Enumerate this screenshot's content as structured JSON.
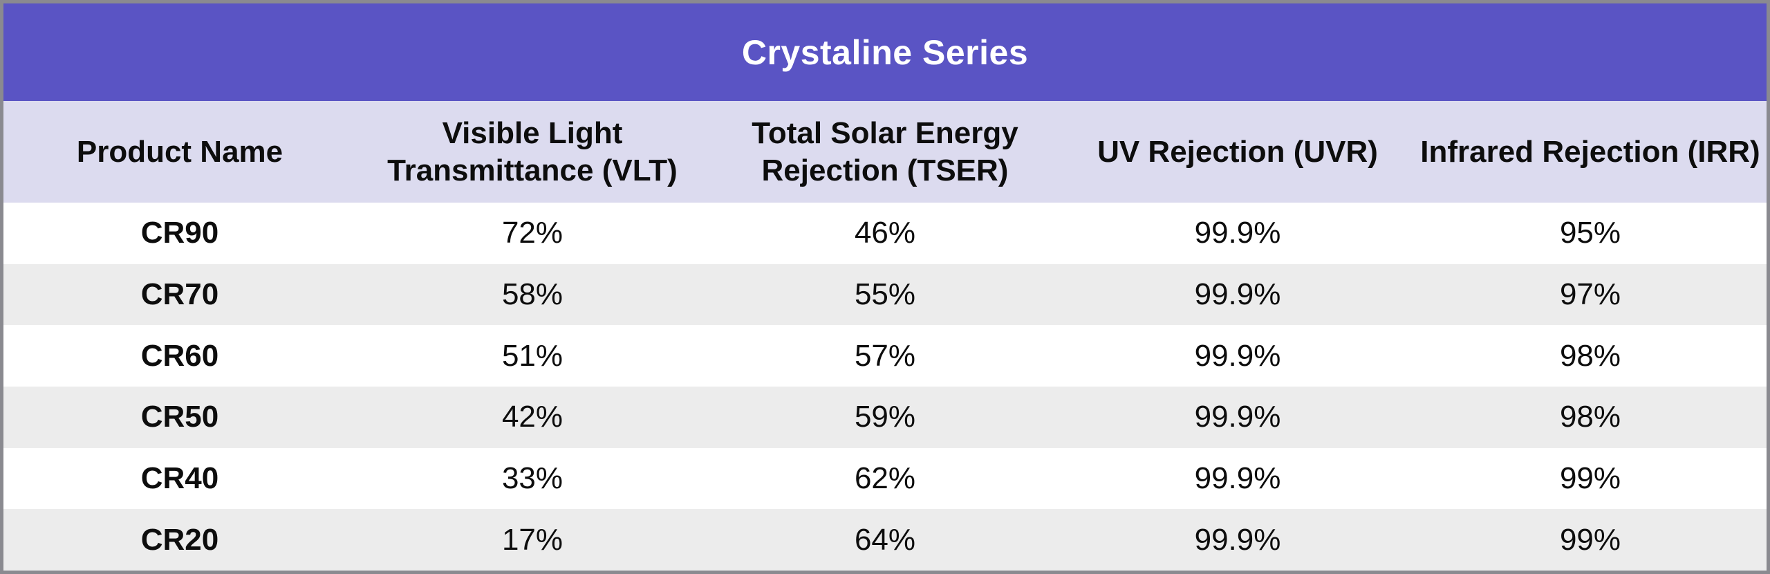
{
  "title": "Crystaline Series",
  "colors": {
    "title_band_bg": "#5A54C4",
    "title_text": "#FFFFFF",
    "header_row_bg": "#DCDBEF",
    "stripe_row_bg": "#ECECEC",
    "plain_row_bg": "#FFFFFF",
    "body_text": "#0D0D0D",
    "outer_border": "#8A8A90"
  },
  "columns": [
    {
      "label": "Product Name"
    },
    {
      "label": "Visible Light\nTransmittance (VLT)"
    },
    {
      "label": "Total Solar Energy\nRejection (TSER)"
    },
    {
      "label": "UV Rejection (UVR)"
    },
    {
      "label": "Infrared Rejection (IRR)"
    }
  ],
  "rows": [
    {
      "product": "CR90",
      "vlt": "72%",
      "tser": "46%",
      "uvr": "99.9%",
      "irr": "95%"
    },
    {
      "product": "CR70",
      "vlt": "58%",
      "tser": "55%",
      "uvr": "99.9%",
      "irr": "97%"
    },
    {
      "product": "CR60",
      "vlt": "51%",
      "tser": "57%",
      "uvr": "99.9%",
      "irr": "98%"
    },
    {
      "product": "CR50",
      "vlt": "42%",
      "tser": "59%",
      "uvr": "99.9%",
      "irr": "98%"
    },
    {
      "product": "CR40",
      "vlt": "33%",
      "tser": "62%",
      "uvr": "99.9%",
      "irr": "99%"
    },
    {
      "product": "CR20",
      "vlt": "17%",
      "tser": "64%",
      "uvr": "99.9%",
      "irr": "99%"
    }
  ],
  "chart_data": {
    "type": "table",
    "title": "Crystaline Series",
    "columns": [
      "Product Name",
      "Visible Light Transmittance (VLT)",
      "Total Solar Energy Rejection (TSER)",
      "UV Rejection (UVR)",
      "Infrared Rejection (IRR)"
    ],
    "rows": [
      [
        "CR90",
        "72%",
        "46%",
        "99.9%",
        "95%"
      ],
      [
        "CR70",
        "58%",
        "55%",
        "99.9%",
        "97%"
      ],
      [
        "CR60",
        "51%",
        "57%",
        "99.9%",
        "98%"
      ],
      [
        "CR50",
        "42%",
        "59%",
        "99.9%",
        "98%"
      ],
      [
        "CR40",
        "33%",
        "62%",
        "99.9%",
        "99%"
      ],
      [
        "CR20",
        "17%",
        "64%",
        "99.9%",
        "99%"
      ]
    ]
  }
}
